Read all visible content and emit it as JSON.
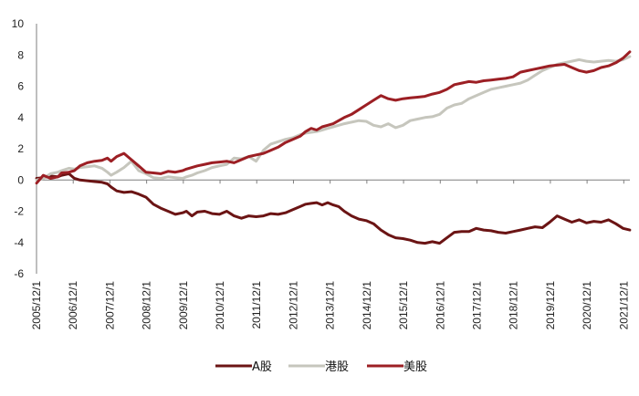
{
  "chart_data": {
    "type": "line",
    "title": "",
    "xlabel": "",
    "ylabel": "",
    "ylim": [
      -6,
      10
    ],
    "yticks": [
      -6,
      -4,
      -2,
      0,
      2,
      4,
      6,
      8,
      10
    ],
    "x_range": [
      2005.917,
      2022.083
    ],
    "xticks": [
      {
        "x": 2005.917,
        "label": "2005/12/1"
      },
      {
        "x": 2006.917,
        "label": "2006/12/1"
      },
      {
        "x": 2007.917,
        "label": "2007/12/1"
      },
      {
        "x": 2008.917,
        "label": "2008/12/1"
      },
      {
        "x": 2009.917,
        "label": "2009/12/1"
      },
      {
        "x": 2010.917,
        "label": "2010/12/1"
      },
      {
        "x": 2011.917,
        "label": "2011/12/1"
      },
      {
        "x": 2012.917,
        "label": "2012/12/1"
      },
      {
        "x": 2013.917,
        "label": "2013/12/1"
      },
      {
        "x": 2014.917,
        "label": "2014/12/1"
      },
      {
        "x": 2015.917,
        "label": "2015/12/1"
      },
      {
        "x": 2016.917,
        "label": "2016/12/1"
      },
      {
        "x": 2017.917,
        "label": "2017/12/1"
      },
      {
        "x": 2018.917,
        "label": "2018/12/1"
      },
      {
        "x": 2019.917,
        "label": "2019/12/1"
      },
      {
        "x": 2020.917,
        "label": "2020/12/1"
      },
      {
        "x": 2021.917,
        "label": "2021/12/1"
      }
    ],
    "legend_position": "bottom",
    "series": [
      {
        "name": "A股",
        "color": "#6b1414",
        "width": 3,
        "x": [
          2005.92,
          2006.1,
          2006.3,
          2006.5,
          2006.6,
          2006.8,
          2006.95,
          2007.1,
          2007.3,
          2007.5,
          2007.7,
          2007.85,
          2007.95,
          2008.1,
          2008.3,
          2008.5,
          2008.7,
          2008.9,
          2009.1,
          2009.3,
          2009.5,
          2009.7,
          2009.9,
          2010.0,
          2010.15,
          2010.3,
          2010.5,
          2010.7,
          2010.9,
          2011.1,
          2011.3,
          2011.5,
          2011.7,
          2011.9,
          2012.1,
          2012.3,
          2012.5,
          2012.7,
          2012.9,
          2013.1,
          2013.25,
          2013.4,
          2013.55,
          2013.7,
          2013.85,
          2014.0,
          2014.15,
          2014.3,
          2014.5,
          2014.7,
          2014.9,
          2015.1,
          2015.3,
          2015.5,
          2015.7,
          2015.9,
          2016.1,
          2016.3,
          2016.5,
          2016.7,
          2016.9,
          2017.1,
          2017.3,
          2017.5,
          2017.7,
          2017.9,
          2018.1,
          2018.3,
          2018.5,
          2018.7,
          2018.9,
          2019.1,
          2019.3,
          2019.5,
          2019.7,
          2019.9,
          2020.1,
          2020.3,
          2020.5,
          2020.7,
          2020.9,
          2021.1,
          2021.3,
          2021.5,
          2021.7,
          2021.9,
          2022.08
        ],
        "y": [
          0.1,
          0.15,
          0.25,
          0.2,
          0.3,
          0.4,
          0.1,
          0.0,
          -0.05,
          -0.1,
          -0.15,
          -0.25,
          -0.45,
          -0.7,
          -0.8,
          -0.75,
          -0.9,
          -1.1,
          -1.55,
          -1.8,
          -2.0,
          -2.2,
          -2.1,
          -2.0,
          -2.3,
          -2.05,
          -2.0,
          -2.15,
          -2.2,
          -2.0,
          -2.3,
          -2.45,
          -2.3,
          -2.35,
          -2.3,
          -2.15,
          -2.2,
          -2.1,
          -1.9,
          -1.7,
          -1.55,
          -1.5,
          -1.45,
          -1.6,
          -1.45,
          -1.6,
          -1.7,
          -2.0,
          -2.3,
          -2.5,
          -2.6,
          -2.8,
          -3.2,
          -3.5,
          -3.7,
          -3.75,
          -3.85,
          -4.0,
          -4.05,
          -3.95,
          -4.05,
          -3.7,
          -3.35,
          -3.3,
          -3.3,
          -3.1,
          -3.2,
          -3.25,
          -3.35,
          -3.4,
          -3.3,
          -3.2,
          -3.1,
          -3.0,
          -3.05,
          -2.7,
          -2.3,
          -2.5,
          -2.7,
          -2.55,
          -2.75,
          -2.65,
          -2.7,
          -2.55,
          -2.8,
          -3.1,
          -3.2
        ]
      },
      {
        "name": "港股",
        "color": "#c6c6bd",
        "width": 3,
        "x": [
          2005.92,
          2006.1,
          2006.3,
          2006.5,
          2006.6,
          2006.8,
          2006.95,
          2007.1,
          2007.3,
          2007.5,
          2007.7,
          2007.85,
          2007.95,
          2008.1,
          2008.3,
          2008.5,
          2008.7,
          2008.9,
          2009.1,
          2009.3,
          2009.5,
          2009.7,
          2009.9,
          2010.0,
          2010.15,
          2010.3,
          2010.5,
          2010.7,
          2010.9,
          2011.1,
          2011.3,
          2011.5,
          2011.7,
          2011.9,
          2012.1,
          2012.3,
          2012.5,
          2012.7,
          2012.9,
          2013.1,
          2013.25,
          2013.4,
          2013.55,
          2013.7,
          2013.85,
          2014.0,
          2014.15,
          2014.3,
          2014.5,
          2014.7,
          2014.9,
          2015.1,
          2015.3,
          2015.5,
          2015.7,
          2015.9,
          2016.1,
          2016.3,
          2016.5,
          2016.7,
          2016.9,
          2017.1,
          2017.3,
          2017.5,
          2017.7,
          2017.9,
          2018.1,
          2018.3,
          2018.5,
          2018.7,
          2018.9,
          2019.1,
          2019.3,
          2019.5,
          2019.7,
          2019.9,
          2020.1,
          2020.3,
          2020.5,
          2020.7,
          2020.9,
          2021.1,
          2021.3,
          2021.5,
          2021.7,
          2021.9,
          2022.08
        ],
        "y": [
          0.0,
          0.1,
          0.4,
          0.5,
          0.6,
          0.75,
          0.7,
          0.8,
          0.85,
          0.9,
          0.75,
          0.5,
          0.3,
          0.5,
          0.8,
          1.2,
          0.6,
          0.4,
          0.15,
          0.1,
          0.2,
          0.15,
          0.1,
          0.2,
          0.3,
          0.45,
          0.6,
          0.8,
          0.9,
          1.0,
          1.4,
          1.35,
          1.5,
          1.2,
          1.9,
          2.3,
          2.45,
          2.6,
          2.7,
          2.9,
          3.0,
          3.05,
          3.1,
          3.2,
          3.3,
          3.4,
          3.5,
          3.6,
          3.7,
          3.8,
          3.75,
          3.5,
          3.4,
          3.6,
          3.35,
          3.5,
          3.8,
          3.9,
          4.0,
          4.05,
          4.2,
          4.6,
          4.8,
          4.9,
          5.2,
          5.4,
          5.6,
          5.8,
          5.9,
          6.0,
          6.1,
          6.2,
          6.4,
          6.7,
          7.0,
          7.2,
          7.4,
          7.5,
          7.6,
          7.7,
          7.6,
          7.55,
          7.6,
          7.65,
          7.6,
          7.7,
          7.9
        ]
      },
      {
        "name": "美股",
        "color": "#9c1f24",
        "width": 3,
        "x": [
          2005.92,
          2006.1,
          2006.3,
          2006.5,
          2006.6,
          2006.8,
          2006.95,
          2007.1,
          2007.3,
          2007.5,
          2007.7,
          2007.85,
          2007.95,
          2008.1,
          2008.3,
          2008.5,
          2008.7,
          2008.9,
          2009.1,
          2009.3,
          2009.5,
          2009.7,
          2009.9,
          2010.0,
          2010.15,
          2010.3,
          2010.5,
          2010.7,
          2010.9,
          2011.1,
          2011.3,
          2011.5,
          2011.7,
          2011.9,
          2012.1,
          2012.3,
          2012.5,
          2012.7,
          2012.9,
          2013.1,
          2013.25,
          2013.4,
          2013.55,
          2013.7,
          2013.85,
          2014.0,
          2014.15,
          2014.3,
          2014.5,
          2014.7,
          2014.9,
          2015.1,
          2015.3,
          2015.5,
          2015.7,
          2015.9,
          2016.1,
          2016.3,
          2016.5,
          2016.7,
          2016.9,
          2017.1,
          2017.3,
          2017.5,
          2017.7,
          2017.9,
          2018.1,
          2018.3,
          2018.5,
          2018.7,
          2018.9,
          2019.1,
          2019.3,
          2019.5,
          2019.7,
          2019.9,
          2020.1,
          2020.3,
          2020.5,
          2020.7,
          2020.9,
          2021.1,
          2021.3,
          2021.5,
          2021.7,
          2021.9,
          2022.08
        ],
        "y": [
          -0.2,
          0.3,
          0.1,
          0.2,
          0.45,
          0.5,
          0.6,
          0.9,
          1.1,
          1.2,
          1.25,
          1.4,
          1.2,
          1.5,
          1.7,
          1.3,
          0.9,
          0.5,
          0.45,
          0.4,
          0.55,
          0.5,
          0.6,
          0.7,
          0.8,
          0.9,
          1.0,
          1.1,
          1.15,
          1.2,
          1.1,
          1.3,
          1.5,
          1.6,
          1.7,
          1.9,
          2.1,
          2.4,
          2.6,
          2.8,
          3.1,
          3.3,
          3.2,
          3.4,
          3.5,
          3.6,
          3.8,
          4.0,
          4.2,
          4.5,
          4.8,
          5.1,
          5.4,
          5.2,
          5.1,
          5.2,
          5.25,
          5.3,
          5.35,
          5.5,
          5.6,
          5.8,
          6.1,
          6.2,
          6.3,
          6.25,
          6.35,
          6.4,
          6.45,
          6.5,
          6.6,
          6.9,
          7.0,
          7.1,
          7.2,
          7.3,
          7.35,
          7.4,
          7.2,
          7.0,
          6.9,
          7.0,
          7.2,
          7.3,
          7.5,
          7.8,
          8.2
        ]
      }
    ]
  }
}
